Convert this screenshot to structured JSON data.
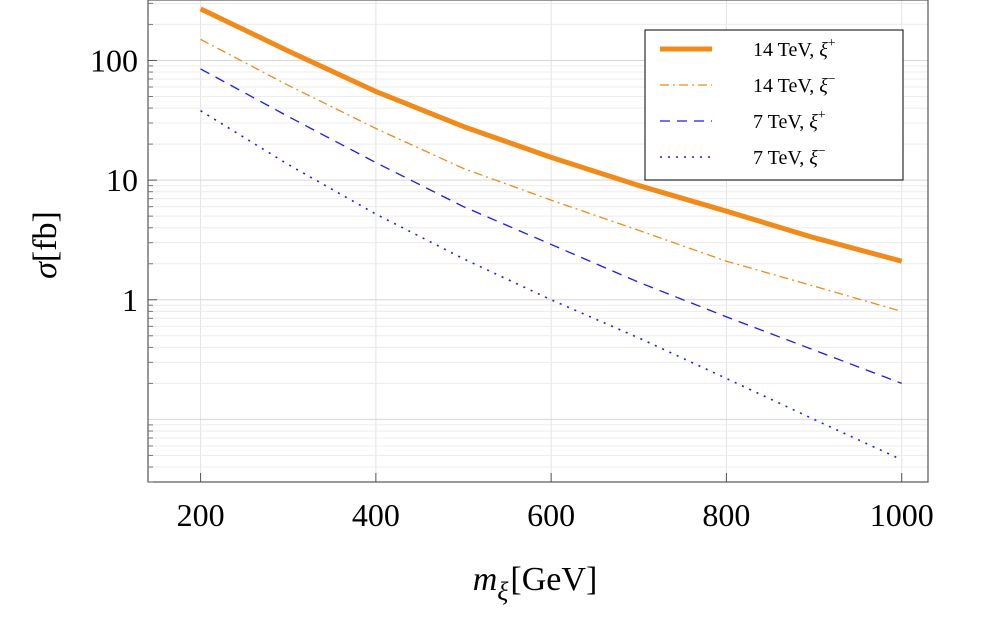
{
  "chart_data": {
    "type": "line",
    "yscale": "log",
    "xlim": [
      140,
      1030
    ],
    "ylim": [
      0.03,
      320
    ],
    "xticks": [
      200,
      400,
      600,
      800,
      1000
    ],
    "xtick_labels": [
      "200",
      "400",
      "600",
      "800",
      "1000"
    ],
    "yticks": [
      1,
      10,
      100
    ],
    "ytick_labels": [
      "1",
      "10",
      "100"
    ],
    "xlabel": {
      "main": "m",
      "sub": "ξ",
      "unit": "[GeV]"
    },
    "ylabel": {
      "main": "σ",
      "unit": "[fb]"
    },
    "grid": true,
    "legend_position": "top-right",
    "x": [
      200,
      300,
      400,
      500,
      600,
      700,
      800,
      900,
      1000
    ],
    "series": [
      {
        "name": "14 TeV, ξ⁺",
        "label_main": "14 TeV, ξ",
        "label_sup": "+",
        "color": "#f28a1a",
        "style": "solid",
        "values": [
          270,
          120,
          55,
          28,
          15.5,
          9.0,
          5.5,
          3.3,
          2.1
        ]
      },
      {
        "name": "14 TeV, ξ⁻",
        "label_main": "14 TeV, ξ",
        "label_sup": "−",
        "color": "#f28a1a",
        "style": "dashdot",
        "values": [
          150,
          62,
          27,
          12.5,
          6.8,
          3.8,
          2.1,
          1.3,
          0.8
        ]
      },
      {
        "name": "7 TeV, ξ⁺",
        "label_main": "7 TeV, ξ",
        "label_sup": "+",
        "color": "#1a1aee",
        "style": "dashed",
        "values": [
          85,
          34,
          14,
          6,
          2.9,
          1.4,
          0.72,
          0.38,
          0.2
        ]
      },
      {
        "name": "7 TeV, ξ⁻",
        "label_main": "7 TeV, ξ",
        "label_sup": "−",
        "color": "#1a1aee",
        "style": "dotted",
        "values": [
          38,
          13.5,
          5.2,
          2.2,
          1.0,
          0.48,
          0.22,
          0.1,
          0.046
        ]
      }
    ]
  }
}
